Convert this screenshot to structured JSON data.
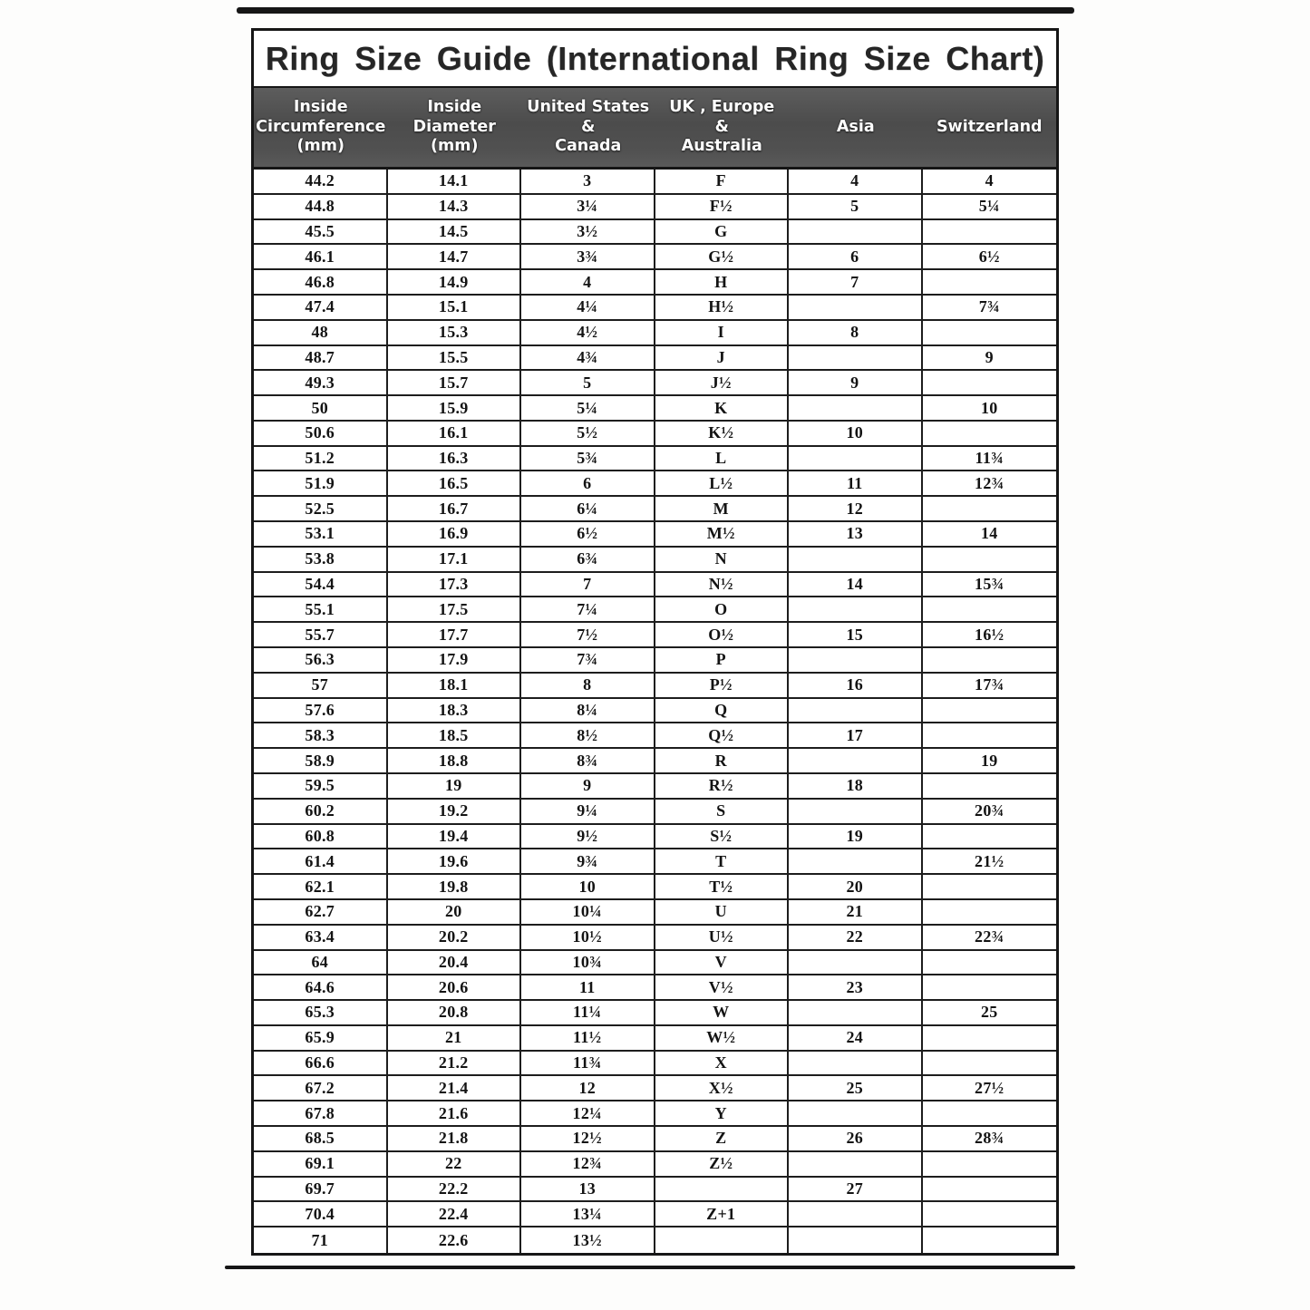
{
  "page": {
    "title": "Ring Size Guide (International Ring Size Chart)"
  },
  "colors": {
    "ink": "#161616",
    "grid_line": "#1d1d1d",
    "header_bg": "#4f4f4f",
    "header_text": "#ffffff"
  },
  "table": {
    "columns": [
      {
        "id": "inside-circumference",
        "lines": [
          "Inside",
          "Circumference",
          "(mm)"
        ]
      },
      {
        "id": "inside-diameter",
        "lines": [
          "Inside",
          "Diameter",
          "(mm)"
        ]
      },
      {
        "id": "us-canada",
        "lines": [
          "United States",
          "&",
          "Canada"
        ]
      },
      {
        "id": "uk-europe-australia",
        "lines": [
          "UK , Europe",
          "&",
          "Australia"
        ]
      },
      {
        "id": "asia",
        "lines": [
          "Asia"
        ]
      },
      {
        "id": "switzerland",
        "lines": [
          "Switzerland"
        ]
      }
    ],
    "rows": [
      [
        "44.2",
        "14.1",
        "3",
        "F",
        "4",
        "4"
      ],
      [
        "44.8",
        "14.3",
        "3¼",
        "F½",
        "5",
        "5¼"
      ],
      [
        "45.5",
        "14.5",
        "3½",
        "G",
        "",
        ""
      ],
      [
        "46.1",
        "14.7",
        "3¾",
        "G½",
        "6",
        "6½"
      ],
      [
        "46.8",
        "14.9",
        "4",
        "H",
        "7",
        ""
      ],
      [
        "47.4",
        "15.1",
        "4¼",
        "H½",
        "",
        "7¾"
      ],
      [
        "48",
        "15.3",
        "4½",
        "I",
        "8",
        ""
      ],
      [
        "48.7",
        "15.5",
        "4¾",
        "J",
        "",
        "9"
      ],
      [
        "49.3",
        "15.7",
        "5",
        "J½",
        "9",
        ""
      ],
      [
        "50",
        "15.9",
        "5¼",
        "K",
        "",
        "10"
      ],
      [
        "50.6",
        "16.1",
        "5½",
        "K½",
        "10",
        ""
      ],
      [
        "51.2",
        "16.3",
        "5¾",
        "L",
        "",
        "11¾"
      ],
      [
        "51.9",
        "16.5",
        "6",
        "L½",
        "11",
        "12¾"
      ],
      [
        "52.5",
        "16.7",
        "6¼",
        "M",
        "12",
        ""
      ],
      [
        "53.1",
        "16.9",
        "6½",
        "M½",
        "13",
        "14"
      ],
      [
        "53.8",
        "17.1",
        "6¾",
        "N",
        "",
        ""
      ],
      [
        "54.4",
        "17.3",
        "7",
        "N½",
        "14",
        "15¾"
      ],
      [
        "55.1",
        "17.5",
        "7¼",
        "O",
        "",
        ""
      ],
      [
        "55.7",
        "17.7",
        "7½",
        "O½",
        "15",
        "16½"
      ],
      [
        "56.3",
        "17.9",
        "7¾",
        "P",
        "",
        ""
      ],
      [
        "57",
        "18.1",
        "8",
        "P½",
        "16",
        "17¾"
      ],
      [
        "57.6",
        "18.3",
        "8¼",
        "Q",
        "",
        ""
      ],
      [
        "58.3",
        "18.5",
        "8½",
        "Q½",
        "17",
        ""
      ],
      [
        "58.9",
        "18.8",
        "8¾",
        "R",
        "",
        "19"
      ],
      [
        "59.5",
        "19",
        "9",
        "R½",
        "18",
        ""
      ],
      [
        "60.2",
        "19.2",
        "9¼",
        "S",
        "",
        "20¾"
      ],
      [
        "60.8",
        "19.4",
        "9½",
        "S½",
        "19",
        ""
      ],
      [
        "61.4",
        "19.6",
        "9¾",
        "T",
        "",
        "21½"
      ],
      [
        "62.1",
        "19.8",
        "10",
        "T½",
        "20",
        ""
      ],
      [
        "62.7",
        "20",
        "10¼",
        "U",
        "21",
        ""
      ],
      [
        "63.4",
        "20.2",
        "10½",
        "U½",
        "22",
        "22¾"
      ],
      [
        "64",
        "20.4",
        "10¾",
        "V",
        "",
        ""
      ],
      [
        "64.6",
        "20.6",
        "11",
        "V½",
        "23",
        ""
      ],
      [
        "65.3",
        "20.8",
        "11¼",
        "W",
        "",
        "25"
      ],
      [
        "65.9",
        "21",
        "11½",
        "W½",
        "24",
        ""
      ],
      [
        "66.6",
        "21.2",
        "11¾",
        "X",
        "",
        ""
      ],
      [
        "67.2",
        "21.4",
        "12",
        "X½",
        "25",
        "27½"
      ],
      [
        "67.8",
        "21.6",
        "12¼",
        "Y",
        "",
        ""
      ],
      [
        "68.5",
        "21.8",
        "12½",
        "Z",
        "26",
        "28¾"
      ],
      [
        "69.1",
        "22",
        "12¾",
        "Z½",
        "",
        ""
      ],
      [
        "69.7",
        "22.2",
        "13",
        "",
        "27",
        ""
      ],
      [
        "70.4",
        "22.4",
        "13¼",
        "Z+1",
        "",
        ""
      ],
      [
        "71",
        "22.6",
        "13½",
        "",
        "",
        ""
      ]
    ]
  }
}
